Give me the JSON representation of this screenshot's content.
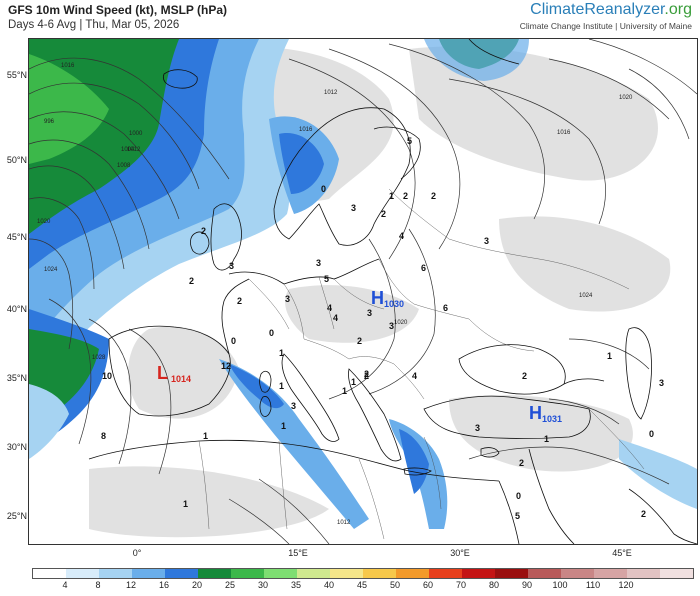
{
  "header": {
    "title": "GFS 10m Wind Speed (kt), MSLP (hPa)",
    "subtitle": "Days 4-6 Avg | Thu, Mar 05, 2026",
    "brand_main": "ClimateReanalyzer",
    "brand_tld": ".org",
    "brand_sub": "Climate Change Institute | University of Maine"
  },
  "axes": {
    "lat_labels": [
      "55°N",
      "50°N",
      "45°N",
      "40°N",
      "35°N",
      "30°N",
      "25°N"
    ],
    "lon_labels": [
      "0°",
      "15°E",
      "30°E",
      "45°E"
    ]
  },
  "centers": {
    "high1": {
      "letter": "H",
      "value": "1030"
    },
    "high2": {
      "letter": "H",
      "value": "1031"
    },
    "low1": {
      "letter": "L",
      "value": "1014"
    }
  },
  "isobar_labels": [
    "1016",
    "1012",
    "1008",
    "1004",
    "1000",
    "996",
    "1020",
    "1024",
    "1028",
    "1016",
    "1012",
    "1020",
    "1024",
    "1020",
    "1016",
    "1012"
  ],
  "wind_numbers": [
    "5",
    "2",
    "1",
    "0",
    "2",
    "3",
    "2",
    "4",
    "6",
    "3",
    "3",
    "5",
    "2",
    "4",
    "3",
    "2",
    "0",
    "1",
    "6",
    "4",
    "3",
    "2",
    "2",
    "1",
    "3",
    "0",
    "1",
    "2",
    "4",
    "12",
    "10",
    "8",
    "1",
    "1",
    "2",
    "1",
    "3",
    "1",
    "2",
    "0",
    "5",
    "3",
    "1",
    "3",
    "2",
    "3",
    "0",
    "2",
    "1"
  ],
  "colorbar": {
    "colors": [
      "#ffffff",
      "#d8ecfa",
      "#a6d3f2",
      "#6aaeea",
      "#2f78dc",
      "#168a3a",
      "#3cb84a",
      "#7ede72",
      "#cfe98f",
      "#f5e68a",
      "#f7c84a",
      "#f39a2a",
      "#e8401c",
      "#c41414",
      "#9a0f0f",
      "#b85a5a",
      "#c98686",
      "#d6a4a4",
      "#e2c3c3",
      "#f0e0e0"
    ],
    "labels": [
      "4",
      "8",
      "12",
      "16",
      "20",
      "25",
      "30",
      "35",
      "40",
      "45",
      "50",
      "60",
      "70",
      "80",
      "90",
      "100",
      "110",
      "120"
    ]
  }
}
